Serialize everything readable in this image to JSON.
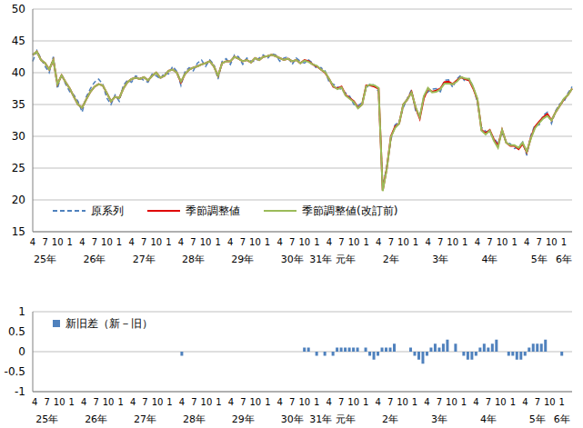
{
  "chart_data": [
    {
      "type": "line",
      "categories": [
        "4",
        null,
        null,
        "7",
        null,
        null,
        "10",
        null,
        null,
        "1",
        null,
        null,
        "4",
        null,
        null,
        "7",
        null,
        null,
        "10",
        null,
        null,
        "1",
        null,
        null,
        "4",
        null,
        null,
        "7",
        null,
        null,
        "10",
        null,
        null,
        "1",
        null,
        null,
        "4",
        null,
        null,
        "7",
        null,
        null,
        "10",
        null,
        null,
        "1",
        null,
        null,
        "4",
        null,
        null,
        "7",
        null,
        null,
        "10",
        null,
        null,
        "1",
        null,
        null,
        "4",
        null,
        null,
        "7",
        null,
        null,
        "10",
        null,
        null,
        "1",
        null,
        null,
        "4",
        null,
        null,
        "7",
        null,
        null,
        "10",
        null,
        null,
        "1",
        null,
        null,
        "4",
        null,
        null,
        "7",
        null,
        null,
        "10",
        null,
        null,
        "1",
        null,
        null,
        "4",
        null,
        null,
        "7",
        null,
        null,
        "10",
        null,
        null,
        "1",
        null,
        null,
        "4",
        null,
        null,
        "7",
        null,
        null,
        "10",
        null,
        null,
        "1",
        null,
        null,
        "4",
        null,
        null,
        "7",
        null,
        null,
        "10",
        null,
        null,
        "1",
        null,
        null
      ],
      "year_labels": [
        null,
        null,
        null,
        "25年",
        null,
        null,
        null,
        null,
        null,
        null,
        null,
        null,
        null,
        null,
        null,
        "26年",
        null,
        null,
        null,
        null,
        null,
        null,
        null,
        null,
        null,
        null,
        null,
        "27年",
        null,
        null,
        null,
        null,
        null,
        null,
        null,
        null,
        null,
        null,
        null,
        "28年",
        null,
        null,
        null,
        null,
        null,
        null,
        null,
        null,
        null,
        null,
        null,
        "29年",
        null,
        null,
        null,
        null,
        null,
        null,
        null,
        null,
        null,
        null,
        null,
        "30年",
        null,
        null,
        null,
        null,
        null,
        null,
        "31年",
        null,
        null,
        null,
        null,
        null,
        "元年",
        null,
        null,
        null,
        null,
        null,
        null,
        null,
        null,
        null,
        null,
        "2年",
        null,
        null,
        null,
        null,
        null,
        null,
        null,
        null,
        null,
        null,
        null,
        "3年",
        null,
        null,
        null,
        null,
        null,
        null,
        null,
        null,
        null,
        null,
        null,
        "4年",
        null,
        null,
        null,
        null,
        null,
        null,
        null,
        null,
        null,
        null,
        null,
        "5年",
        null,
        null,
        null,
        null,
        null,
        "6年",
        null,
        null
      ],
      "series": [
        {
          "name": "原系列",
          "color": "#4f81bd",
          "line_style": "dashed",
          "values": [
            41.8,
            43.5,
            42.2,
            41.0,
            40.0,
            42.5,
            37.5,
            39.8,
            38.2,
            37.0,
            36.5,
            35.5,
            33.8,
            36.2,
            37.5,
            38.5,
            39.0,
            38.2,
            36.0,
            35.0,
            36.5,
            35.5,
            38.0,
            38.8,
            38.5,
            39.5,
            39.2,
            38.8,
            38.5,
            39.8,
            39.5,
            39.0,
            40.0,
            39.8,
            41.0,
            40.2,
            38.0,
            40.2,
            40.8,
            40.3,
            41.5,
            42.0,
            41.0,
            42.0,
            41.3,
            39.0,
            41.8,
            42.2,
            41.3,
            42.8,
            42.5,
            41.3,
            42.3,
            41.8,
            41.8,
            42.3,
            42.8,
            42.2,
            43.0,
            42.8,
            41.8,
            42.3,
            42.5,
            41.3,
            42.3,
            41.8,
            41.5,
            42.0,
            41.5,
            40.6,
            40.8,
            40.3,
            38.5,
            38.2,
            37.8,
            37.3,
            36.8,
            36.3,
            35.0,
            34.8,
            35.3,
            37.6,
            38.3,
            38.0,
            37.0,
            22.0,
            25.3,
            29.5,
            31.8,
            32.3,
            34.5,
            36.0,
            37.3,
            34.0,
            33.1,
            36.3,
            37.0,
            37.4,
            37.5,
            37.0,
            38.8,
            38.9,
            37.7,
            39.0,
            39.6,
            38.6,
            39.1,
            37.8,
            35.3,
            31.4,
            30.8,
            30.5,
            29.8,
            28.8,
            30.5,
            29.2,
            28.8,
            28.1,
            28.3,
            29.1,
            27.0,
            30.2,
            31.8,
            31.8,
            33.3,
            33.8,
            32.0,
            34.0,
            35.1,
            35.4,
            36.8,
            37.8
          ]
        },
        {
          "name": "季節調整値",
          "color": "#e00000",
          "line_style": "solid",
          "values": [
            42.8,
            43.3,
            42.0,
            41.5,
            40.5,
            42.0,
            38.2,
            39.6,
            38.5,
            37.5,
            36.2,
            35.0,
            34.5,
            35.8,
            37.0,
            37.8,
            38.2,
            38.0,
            36.8,
            35.5,
            36.2,
            36.0,
            37.5,
            38.5,
            39.0,
            39.2,
            39.0,
            39.3,
            38.8,
            39.5,
            40.0,
            39.2,
            39.5,
            40.3,
            40.5,
            40.0,
            38.5,
            39.8,
            40.5,
            40.8,
            41.0,
            41.3,
            41.5,
            41.8,
            41.0,
            39.5,
            41.5,
            41.8,
            41.8,
            42.5,
            42.2,
            41.8,
            42.0,
            41.6,
            42.3,
            42.0,
            42.5,
            42.6,
            42.8,
            42.6,
            42.3,
            42.0,
            42.2,
            41.8,
            42.0,
            41.5,
            42.0,
            41.8,
            41.3,
            41.0,
            40.5,
            40.0,
            39.0,
            37.8,
            37.5,
            37.8,
            36.5,
            36.0,
            35.5,
            34.5,
            35.0,
            38.0,
            38.0,
            37.8,
            37.5,
            21.5,
            25.0,
            30.0,
            31.5,
            32.0,
            35.0,
            35.8,
            37.0,
            34.5,
            32.8,
            36.0,
            37.5,
            37.0,
            37.2,
            37.5,
            38.5,
            38.6,
            38.2,
            38.8,
            39.3,
            39.0,
            38.8,
            37.5,
            35.8,
            31.0,
            30.5,
            31.0,
            29.5,
            28.5,
            31.0,
            29.0,
            28.5,
            28.5,
            28.0,
            28.8,
            27.5,
            29.8,
            31.5,
            32.3,
            33.0,
            33.5,
            32.5,
            33.8,
            34.8,
            35.8,
            36.5,
            37.5
          ]
        },
        {
          "name": "季節調整値(改訂前)",
          "color": "#9bbb59",
          "line_style": "solid",
          "values": [
            42.8,
            43.3,
            42.0,
            41.5,
            40.5,
            42.0,
            38.2,
            39.6,
            38.5,
            37.5,
            36.2,
            35.0,
            34.5,
            35.8,
            37.0,
            37.8,
            38.2,
            38.0,
            36.8,
            35.5,
            36.2,
            36.0,
            37.5,
            38.5,
            39.0,
            39.2,
            39.0,
            39.3,
            38.8,
            39.5,
            40.0,
            39.2,
            39.5,
            40.3,
            40.5,
            40.0,
            38.6,
            39.8,
            40.5,
            40.8,
            41.0,
            41.3,
            41.5,
            41.8,
            41.0,
            39.5,
            41.5,
            41.8,
            41.8,
            42.5,
            42.2,
            41.8,
            42.0,
            41.6,
            42.3,
            42.0,
            42.5,
            42.6,
            42.8,
            42.6,
            42.3,
            42.0,
            42.2,
            41.8,
            42.0,
            41.5,
            41.9,
            41.7,
            41.3,
            41.1,
            40.5,
            40.1,
            39.0,
            37.9,
            37.4,
            37.7,
            36.4,
            35.9,
            35.4,
            34.4,
            35.0,
            37.9,
            38.1,
            38.0,
            37.6,
            21.4,
            24.9,
            29.9,
            31.3,
            32.0,
            35.0,
            35.8,
            36.9,
            34.6,
            33.0,
            36.3,
            37.6,
            36.9,
            37.0,
            37.4,
            38.3,
            38.3,
            38.2,
            38.6,
            39.3,
            39.1,
            39.0,
            37.7,
            35.9,
            30.9,
            30.3,
            30.9,
            29.3,
            28.2,
            31.0,
            29.0,
            28.6,
            28.6,
            28.2,
            29.0,
            27.6,
            29.7,
            31.3,
            32.1,
            32.8,
            33.2,
            32.5,
            33.8,
            34.8,
            35.9,
            36.5,
            37.5
          ]
        }
      ],
      "ylim": [
        15,
        50
      ],
      "yticks": [
        15,
        20,
        25,
        30,
        35,
        40,
        45,
        50
      ],
      "grid": true,
      "legend": "lower left"
    },
    {
      "type": "bar",
      "categories": [
        "4",
        null,
        null,
        "7",
        null,
        null,
        "10",
        null,
        null,
        "1",
        null,
        null,
        "4",
        null,
        null,
        "7",
        null,
        null,
        "10",
        null,
        null,
        "1",
        null,
        null,
        "4",
        null,
        null,
        "7",
        null,
        null,
        "10",
        null,
        null,
        "1",
        null,
        null,
        "4",
        null,
        null,
        "7",
        null,
        null,
        "10",
        null,
        null,
        "1",
        null,
        null,
        "4",
        null,
        null,
        "7",
        null,
        null,
        "10",
        null,
        null,
        "1",
        null,
        null,
        "4",
        null,
        null,
        "7",
        null,
        null,
        "10",
        null,
        null,
        "1",
        null,
        null,
        "4",
        null,
        null,
        "7",
        null,
        null,
        "10",
        null,
        null,
        "1",
        null,
        null,
        "4",
        null,
        null,
        "7",
        null,
        null,
        "10",
        null,
        null,
        "1",
        null,
        null,
        "4",
        null,
        null,
        "7",
        null,
        null,
        "10",
        null,
        null,
        "1",
        null,
        null,
        "4",
        null,
        null,
        "7",
        null,
        null,
        "10",
        null,
        null,
        "1",
        null,
        null,
        "4",
        null,
        null,
        "7",
        null,
        null,
        "10",
        null,
        null,
        "1",
        null,
        null
      ],
      "year_labels": [
        null,
        null,
        null,
        "25年",
        null,
        null,
        null,
        null,
        null,
        null,
        null,
        null,
        null,
        null,
        null,
        "26年",
        null,
        null,
        null,
        null,
        null,
        null,
        null,
        null,
        null,
        null,
        null,
        "27年",
        null,
        null,
        null,
        null,
        null,
        null,
        null,
        null,
        null,
        null,
        null,
        "28年",
        null,
        null,
        null,
        null,
        null,
        null,
        null,
        null,
        null,
        null,
        null,
        "29年",
        null,
        null,
        null,
        null,
        null,
        null,
        null,
        null,
        null,
        null,
        null,
        "30年",
        null,
        null,
        null,
        null,
        null,
        null,
        "31年",
        null,
        null,
        null,
        null,
        null,
        "元年",
        null,
        null,
        null,
        null,
        null,
        null,
        null,
        null,
        null,
        null,
        "2年",
        null,
        null,
        null,
        null,
        null,
        null,
        null,
        null,
        null,
        null,
        null,
        "3年",
        null,
        null,
        null,
        null,
        null,
        null,
        null,
        null,
        null,
        null,
        null,
        "4年",
        null,
        null,
        null,
        null,
        null,
        null,
        null,
        null,
        null,
        null,
        null,
        "5年",
        null,
        null,
        null,
        null,
        null,
        "6年",
        null,
        null
      ],
      "series": [
        {
          "name": "新旧差（新－旧）",
          "color": "#4f81bd",
          "values": [
            0,
            0,
            0,
            0,
            0,
            0,
            0,
            0,
            0,
            0,
            0,
            0,
            0,
            0,
            0,
            0,
            0,
            0,
            0,
            0,
            0,
            0,
            0,
            0,
            0,
            0,
            0,
            0,
            0,
            0,
            0,
            0,
            0,
            0,
            0,
            0,
            -0.1,
            0,
            0,
            0,
            0,
            0,
            0,
            0,
            0,
            0,
            0,
            0,
            0,
            0,
            0,
            0,
            0,
            0,
            0,
            0,
            0,
            0,
            0,
            0,
            0,
            0,
            0,
            0,
            0,
            0,
            0.1,
            0.1,
            0,
            -0.1,
            0,
            -0.1,
            0,
            -0.1,
            0.1,
            0.1,
            0.1,
            0.1,
            0.1,
            0.1,
            0,
            0.1,
            -0.1,
            -0.2,
            -0.1,
            0.1,
            0.1,
            0.1,
            0.2,
            0,
            0,
            0,
            0.1,
            -0.1,
            -0.2,
            -0.3,
            -0.1,
            0.1,
            0.2,
            0.1,
            0.2,
            0.3,
            0,
            0.2,
            0,
            -0.1,
            -0.2,
            -0.2,
            -0.1,
            0.1,
            0.2,
            0.1,
            0.2,
            0.3,
            0,
            0,
            -0.1,
            -0.1,
            -0.2,
            -0.2,
            -0.1,
            0.1,
            0.2,
            0.2,
            0.2,
            0.3,
            0,
            0,
            0,
            -0.1,
            0,
            0
          ]
        }
      ],
      "ylim": [
        -1,
        1
      ],
      "yticks": [
        -1,
        -0.5,
        0,
        0.5,
        1
      ],
      "grid": true,
      "legend": "upper left"
    }
  ]
}
